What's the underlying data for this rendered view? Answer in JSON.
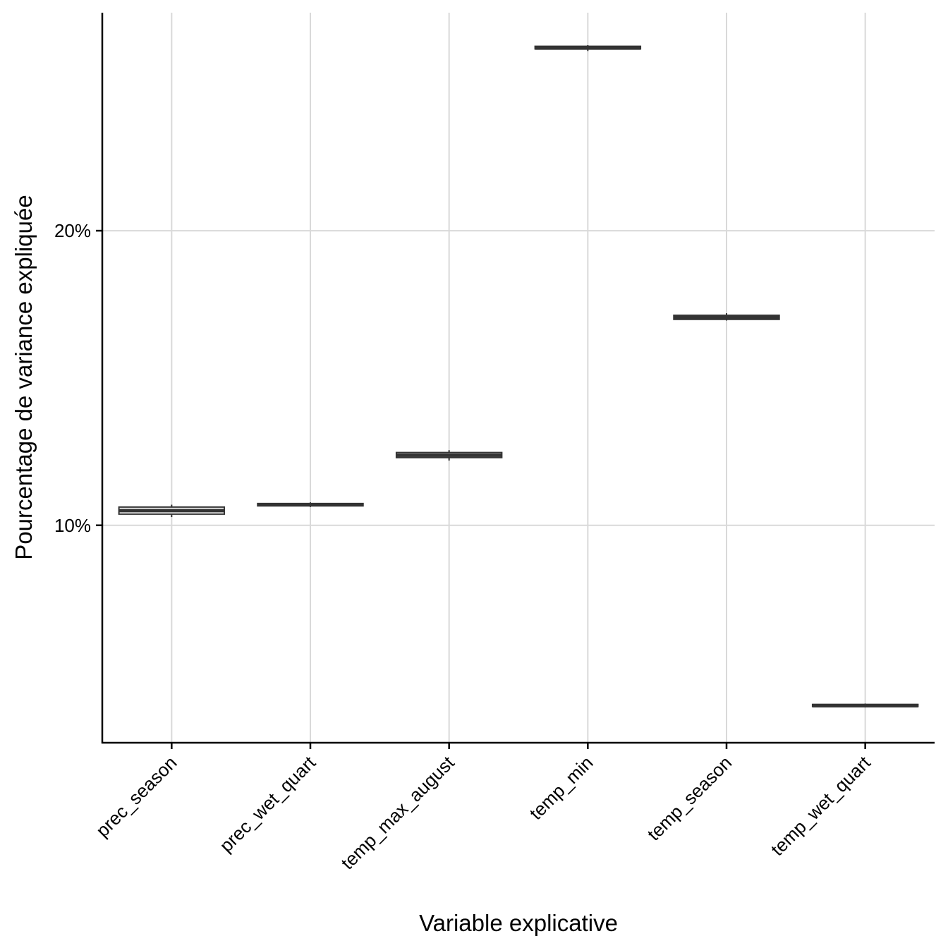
{
  "chart_data": {
    "type": "boxplot",
    "xlabel": "Variable explicative",
    "ylabel": "Pourcentage de variance expliquée",
    "categories": [
      "prec_season",
      "prec_wet_quart",
      "temp_max_august",
      "temp_min",
      "temp_season",
      "temp_wet_quart"
    ],
    "boxes": [
      {
        "name": "prec_season",
        "min": 10.28,
        "q1": 10.38,
        "median": 10.5,
        "q3": 10.62,
        "max": 10.7
      },
      {
        "name": "prec_wet_quart",
        "min": 10.62,
        "q1": 10.66,
        "median": 10.7,
        "q3": 10.74,
        "max": 10.78
      },
      {
        "name": "temp_max_august",
        "min": 12.2,
        "q1": 12.3,
        "median": 12.38,
        "q3": 12.47,
        "max": 12.55
      },
      {
        "name": "temp_min",
        "min": 26.1,
        "q1": 26.17,
        "median": 26.2,
        "q3": 26.26,
        "max": 26.3
      },
      {
        "name": "temp_season",
        "min": 16.95,
        "q1": 16.99,
        "median": 17.05,
        "q3": 17.13,
        "max": 17.2
      },
      {
        "name": "temp_wet_quart",
        "min": 3.82,
        "q1": 3.85,
        "median": 3.88,
        "q3": 3.92,
        "max": 3.95
      }
    ],
    "yticks": [
      10,
      20
    ],
    "ytick_labels": [
      "10%",
      "20%"
    ],
    "ylim": [
      2.62,
      27.4
    ],
    "grid": true,
    "colors": {
      "box": "#333333",
      "grid": "#d9d9d9",
      "axis": "#000000"
    }
  }
}
